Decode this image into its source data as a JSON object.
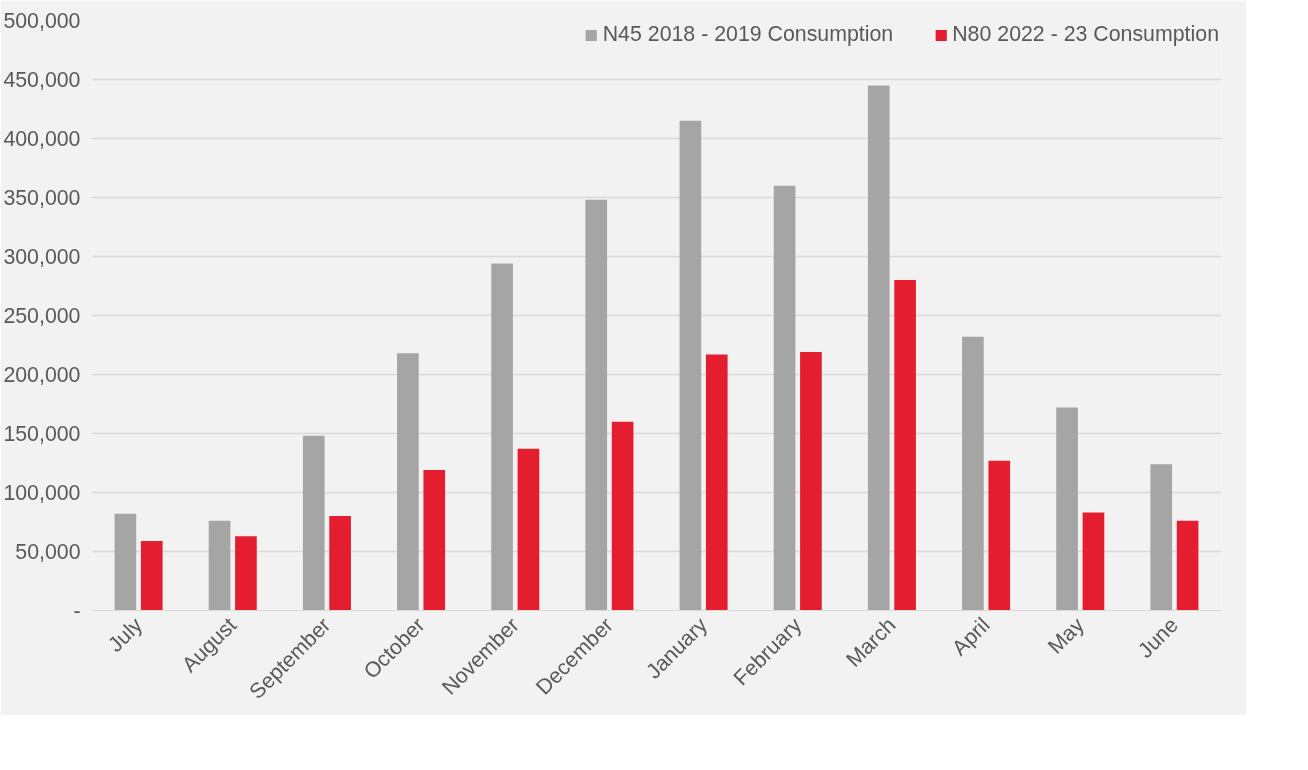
{
  "chart_data": {
    "type": "bar",
    "categories": [
      "July",
      "August",
      "September",
      "October",
      "November",
      "December",
      "January",
      "February",
      "March",
      "April",
      "May",
      "June"
    ],
    "series": [
      {
        "name": "N45 2018 - 2019 Consumption",
        "color": "#a5a5a5",
        "values": [
          82000,
          76000,
          148000,
          218000,
          294000,
          348000,
          415000,
          360000,
          445000,
          232000,
          172000,
          124000
        ]
      },
      {
        "name": "N80 2022 - 23 Consumption",
        "color": "#e41e2f",
        "values": [
          59000,
          63000,
          80000,
          119000,
          137000,
          160000,
          217000,
          219000,
          280000,
          127000,
          83000,
          76000
        ]
      }
    ],
    "ylim": [
      0,
      500000
    ],
    "yticks": [
      {
        "value": 0,
        "label": "-"
      },
      {
        "value": 50000,
        "label": "50,000"
      },
      {
        "value": 100000,
        "label": "100,000"
      },
      {
        "value": 150000,
        "label": "150,000"
      },
      {
        "value": 200000,
        "label": "200,000"
      },
      {
        "value": 250000,
        "label": "250,000"
      },
      {
        "value": 300000,
        "label": "300,000"
      },
      {
        "value": 350000,
        "label": "350,000"
      },
      {
        "value": 400000,
        "label": "400,000"
      },
      {
        "value": 450000,
        "label": "450,000"
      },
      {
        "value": 500000,
        "label": "500,000"
      }
    ],
    "grid": "y",
    "legend": "top right"
  }
}
